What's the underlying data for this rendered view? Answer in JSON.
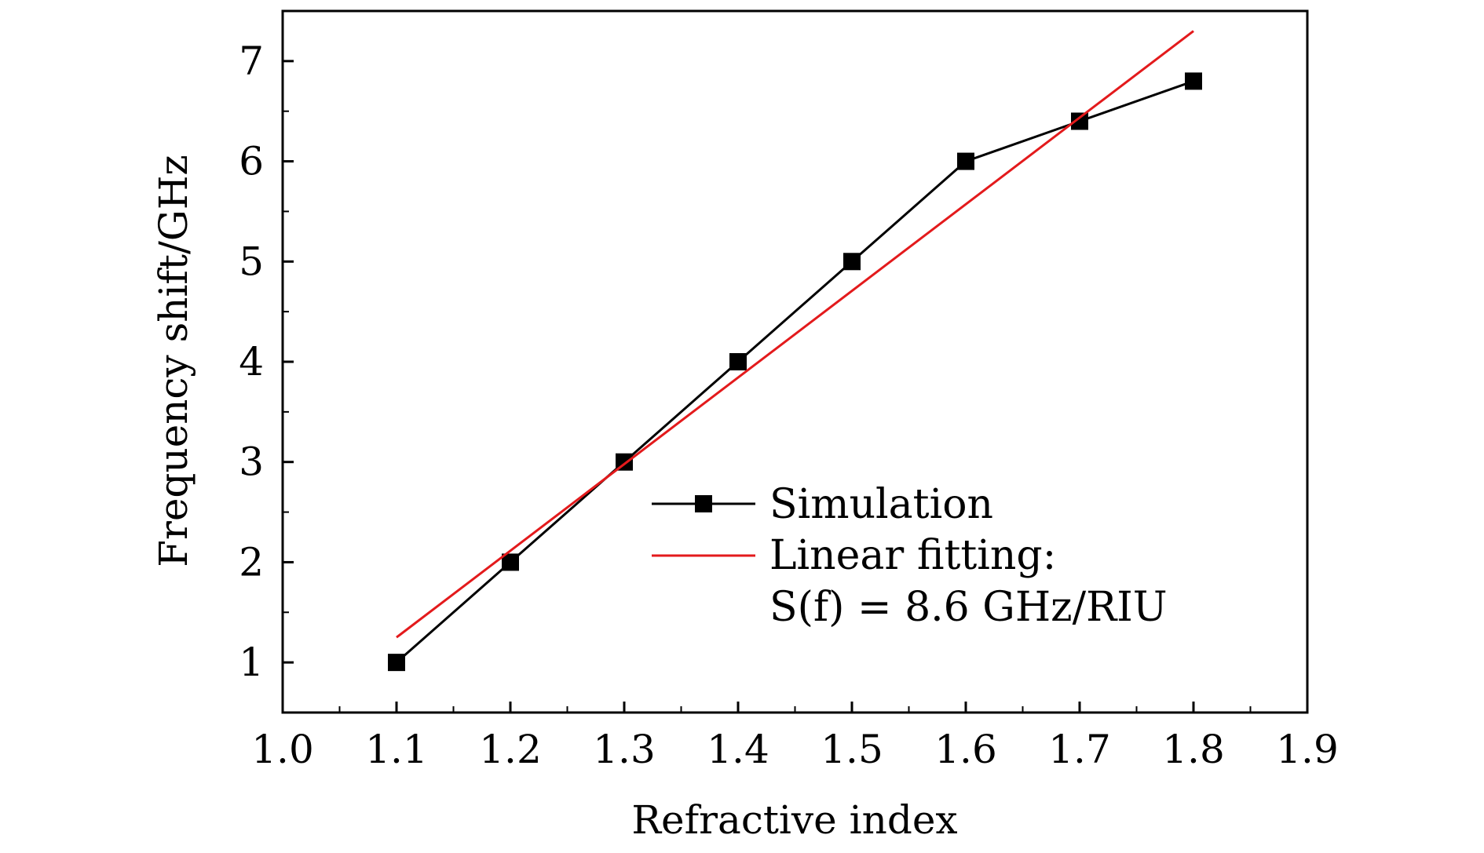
{
  "chart_data": {
    "type": "line",
    "xlabel": "Refractive index",
    "ylabel": "Frequency shift/GHz",
    "xlim": [
      1.0,
      1.9
    ],
    "ylim": [
      0.5,
      7.5
    ],
    "x_ticks": [
      "1.0",
      "1.1",
      "1.2",
      "1.3",
      "1.4",
      "1.5",
      "1.6",
      "1.7",
      "1.8",
      "1.9"
    ],
    "y_ticks": [
      "1",
      "2",
      "3",
      "4",
      "5",
      "6",
      "7"
    ],
    "grid": false,
    "legend_position": "center-right",
    "series": [
      {
        "name": "Simulation",
        "color": "#000000",
        "marker": "square",
        "x": [
          1.1,
          1.2,
          1.3,
          1.4,
          1.5,
          1.6,
          1.7,
          1.8
        ],
        "y": [
          1,
          2,
          3,
          4,
          5,
          6,
          6.4,
          6.8
        ]
      },
      {
        "name": "Linear fitting:",
        "color": "#e31a1c",
        "marker": "none",
        "x": [
          1.1,
          1.8
        ],
        "y": [
          1.25,
          7.3
        ]
      }
    ],
    "annotation": "S(f) = 8.6 GHz/RIU"
  }
}
